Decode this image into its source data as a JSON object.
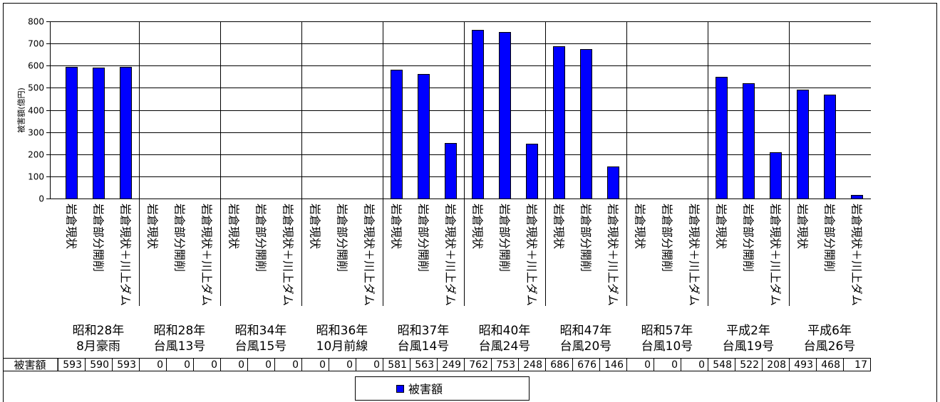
{
  "chart_data": {
    "type": "bar",
    "ylabel": "被害額(億円)",
    "ylim": [
      0,
      800
    ],
    "yticks": [
      0,
      100,
      200,
      300,
      400,
      500,
      600,
      700,
      800
    ],
    "grid": true,
    "legend": "bottom",
    "data_table": true,
    "category_groups": [
      {
        "label": [
          "昭和28年",
          "8月豪雨"
        ],
        "categories": [
          "岩倉現状",
          "岩倉部分開削",
          "岩倉現状＋川上ダム"
        ]
      },
      {
        "label": [
          "昭和28年",
          "台風13号"
        ],
        "categories": [
          "岩倉現状",
          "岩倉部分開削",
          "岩倉現状＋川上ダム"
        ]
      },
      {
        "label": [
          "昭和34年",
          "台風15号"
        ],
        "categories": [
          "岩倉現状",
          "岩倉部分開削",
          "岩倉現状＋川上ダム"
        ]
      },
      {
        "label": [
          "昭和36年",
          "10月前線"
        ],
        "categories": [
          "岩倉現状",
          "岩倉部分開削",
          "岩倉現状＋川上ダム"
        ]
      },
      {
        "label": [
          "昭和37年",
          "台風14号"
        ],
        "categories": [
          "岩倉現状",
          "岩倉部分開削",
          "岩倉現状＋川上ダム"
        ]
      },
      {
        "label": [
          "昭和40年",
          "台風24号"
        ],
        "categories": [
          "岩倉現状",
          "岩倉部分開削",
          "岩倉現状＋川上ダム"
        ]
      },
      {
        "label": [
          "昭和47年",
          "台風20号"
        ],
        "categories": [
          "岩倉現状",
          "岩倉部分開削",
          "岩倉現状＋川上ダム"
        ]
      },
      {
        "label": [
          "昭和57年",
          "台風10号"
        ],
        "categories": [
          "岩倉現状",
          "岩倉部分開削",
          "岩倉現状＋川上ダム"
        ]
      },
      {
        "label": [
          "平成2年",
          "台風19号"
        ],
        "categories": [
          "岩倉現状",
          "岩倉部分開削",
          "岩倉現状＋川上ダム"
        ]
      },
      {
        "label": [
          "平成6年",
          "台風26号"
        ],
        "categories": [
          "岩倉現状",
          "岩倉部分開削",
          "岩倉現状＋川上ダム"
        ]
      }
    ],
    "series": [
      {
        "name": "被害額",
        "color": "#0000FF",
        "outline": "#000000",
        "values": [
          593,
          590,
          593,
          0,
          0,
          0,
          0,
          0,
          0,
          0,
          0,
          0,
          581,
          563,
          249,
          762,
          753,
          248,
          686,
          676,
          146,
          0,
          0,
          0,
          548,
          522,
          208,
          493,
          468,
          17
        ]
      }
    ]
  }
}
